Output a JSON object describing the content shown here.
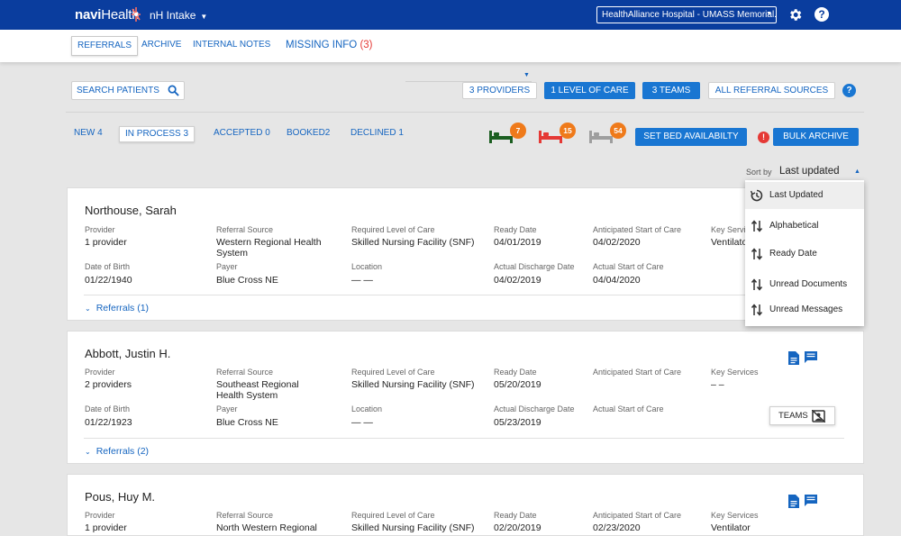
{
  "header": {
    "brand_bold": "navi",
    "brand_rest": "Health",
    "app_name": "nH Intake",
    "hospital": "HealthAlliance Hospital - UMASS Memorial...",
    "help": "?"
  },
  "nav": {
    "tabs": [
      "REFERRALS",
      "ARCHIVE",
      "INTERNAL NOTES",
      "MISSING INFO"
    ],
    "missing_count": "(3)"
  },
  "toolbar": {
    "search_label": "SEARCH PATIENTS",
    "providers": "3 PROVIDERS",
    "level_of_care": "1 LEVEL OF CARE",
    "teams": "3 TEAMS",
    "sources": "ALL REFERRAL SOURCES",
    "help": "?"
  },
  "status_tabs": [
    "NEW 4",
    "IN PROCESS 3",
    "ACCEPTED 0",
    "BOOKED2",
    "DECLINED 1"
  ],
  "beds": [
    {
      "count": "7",
      "color": "#1b5e20"
    },
    {
      "count": "15",
      "color": "#e53935"
    },
    {
      "count": "54",
      "color": "#9e9e9e"
    }
  ],
  "badge_color": "#ef7a1a",
  "set_bed": "SET BED AVAILABILTY",
  "alert": "!",
  "bulk_archive": "BULK ARCHIVE",
  "sort": {
    "label": "Sort by",
    "value": "Last updated",
    "options": [
      "Last Updated",
      "Alphabetical",
      "Ready Date",
      "Unread Documents",
      "Unread Messages"
    ]
  },
  "labels": {
    "provider": "Provider",
    "referral_source": "Referral Source",
    "required_loc": "Required Level of Care",
    "ready_date": "Ready Date",
    "anticipated_start": "Anticipated Start of Care",
    "key_services": "Key Services",
    "dob": "Date of Birth",
    "payer": "Payer",
    "location": "Location",
    "actual_discharge": "Actual Discharge Date",
    "actual_start": "Actual Start of Care"
  },
  "patients": [
    {
      "name": "Northouse, Sarah",
      "provider": "1 provider",
      "referral_source": "Western Regional Health System",
      "required_loc": "Skilled Nursing Facility (SNF)",
      "ready_date": "04/01/2019",
      "anticipated_start": "04/02/2020",
      "key_services_label": "Key Servi",
      "key_services": "Ventilator",
      "dob": "01/22/1940",
      "payer": "Blue Cross NE",
      "location": "— —",
      "actual_discharge": "04/02/2019",
      "actual_start": "04/04/2020",
      "referrals": "Referrals (1)"
    },
    {
      "name": "Abbott, Justin H.",
      "provider": "2 providers",
      "referral_source": "Southeast Regional Health System",
      "required_loc": "Skilled Nursing Facility (SNF)",
      "ready_date": "05/20/2019",
      "anticipated_start": "",
      "key_services": "– –",
      "dob": "01/22/1923",
      "payer": "Blue Cross NE",
      "location": "— —",
      "actual_discharge": "05/23/2019",
      "actual_start": "",
      "referrals": "Referrals (2)",
      "teams_chip": "TEAMS"
    },
    {
      "name": "Pous, Huy M.",
      "provider": "1 provider",
      "referral_source": "North Western Regional",
      "required_loc": "Skilled Nursing Facility (SNF)",
      "ready_date": "02/20/2019",
      "anticipated_start": "02/23/2020",
      "key_services": "Ventilator"
    }
  ]
}
